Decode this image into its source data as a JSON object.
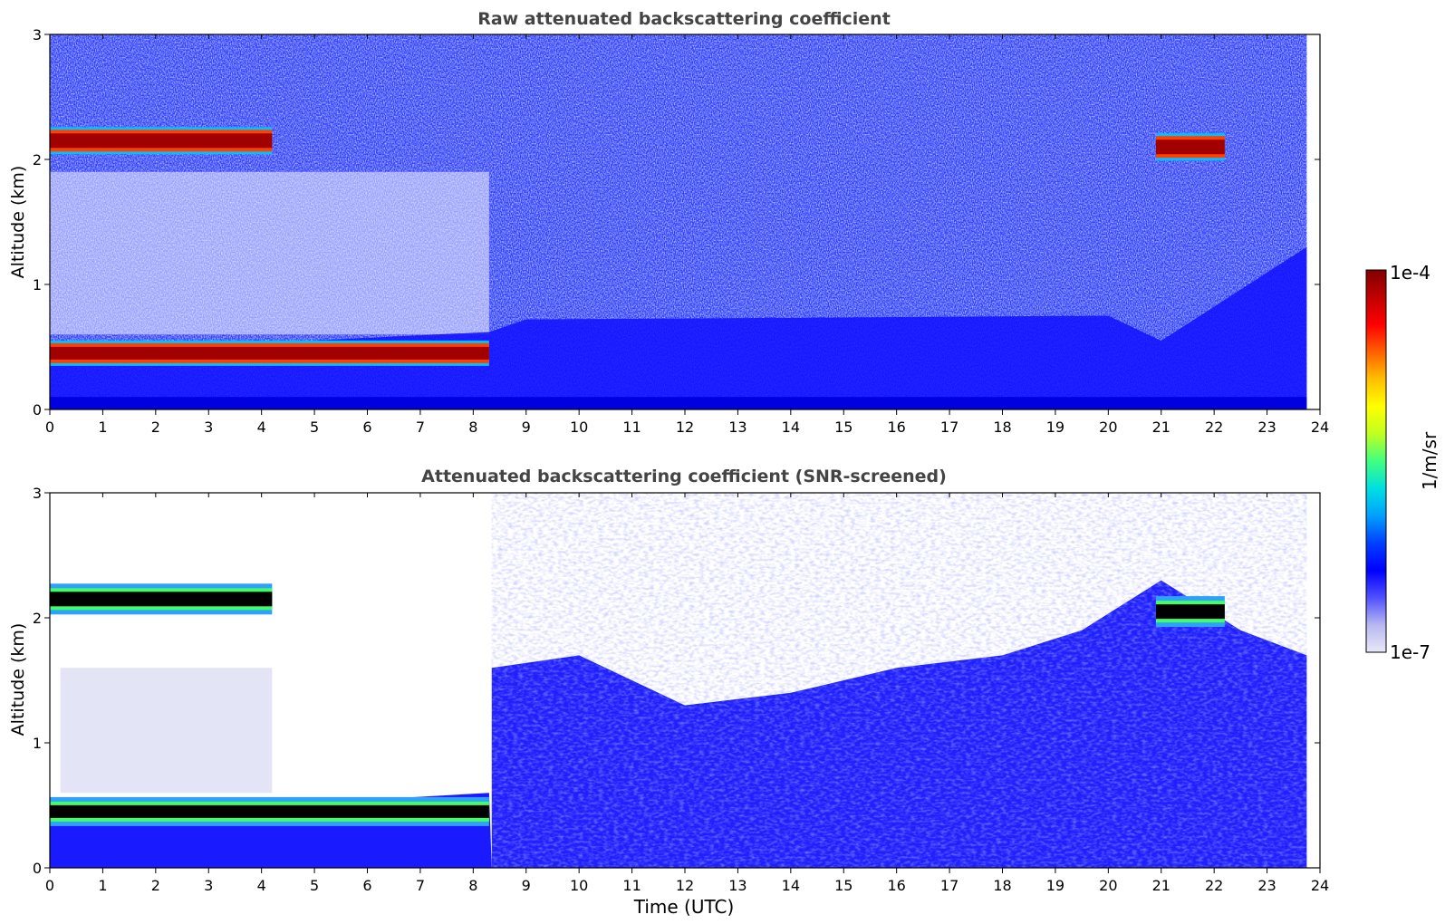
{
  "chart_data": [
    {
      "type": "heatmap",
      "title": "Raw attenuated backscattering coefficient",
      "xlabel": "",
      "ylabel": "Altitude (km)",
      "xlim": [
        0,
        24
      ],
      "ylim": [
        0,
        3
      ],
      "xticks": [
        0,
        1,
        2,
        3,
        4,
        5,
        6,
        7,
        8,
        9,
        10,
        11,
        12,
        13,
        14,
        15,
        16,
        17,
        18,
        19,
        20,
        21,
        22,
        23,
        24
      ],
      "yticks": [
        0,
        1,
        2,
        3
      ],
      "grid": false,
      "features": [
        {
          "label": "cloud layer",
          "x_range": [
            0.0,
            4.2
          ],
          "altitude": 2.15
        },
        {
          "label": "aerosol layer top",
          "x_range": [
            0.0,
            8.3
          ],
          "altitude": 0.45
        },
        {
          "label": "cloud layer",
          "x_range": [
            20.9,
            22.2
          ],
          "altitude": 2.1
        }
      ]
    },
    {
      "type": "heatmap",
      "title": "Attenuated backscattering coefficient (SNR-screened)",
      "xlabel": "Time (UTC)",
      "ylabel": "Altitude (km)",
      "xlim": [
        0,
        24
      ],
      "ylim": [
        0,
        3
      ],
      "xticks": [
        0,
        1,
        2,
        3,
        4,
        5,
        6,
        7,
        8,
        9,
        10,
        11,
        12,
        13,
        14,
        15,
        16,
        17,
        18,
        19,
        20,
        21,
        22,
        23,
        24
      ],
      "yticks": [
        0,
        1,
        2,
        3
      ],
      "grid": false,
      "features": [
        {
          "label": "cloud layer",
          "x_range": [
            0.0,
            4.2
          ],
          "altitude": 2.15
        },
        {
          "label": "aerosol layer top",
          "x_range": [
            0.0,
            8.3
          ],
          "altitude": 0.45
        },
        {
          "label": "cloud layer",
          "x_range": [
            20.9,
            22.2
          ],
          "altitude": 2.05
        }
      ]
    }
  ],
  "colorbar": {
    "label": "1/m/sr",
    "min_label": "1e-7",
    "max_label": "1e-4",
    "scale": "log",
    "colormap": [
      "#e8e8f8",
      "#b8b8f0",
      "#5050ff",
      "#0000ff",
      "#0040ff",
      "#00a0ff",
      "#00e0e0",
      "#40ff80",
      "#c0ff20",
      "#ffff00",
      "#ffc000",
      "#ff6000",
      "#ff0000",
      "#c00000",
      "#800000"
    ]
  }
}
